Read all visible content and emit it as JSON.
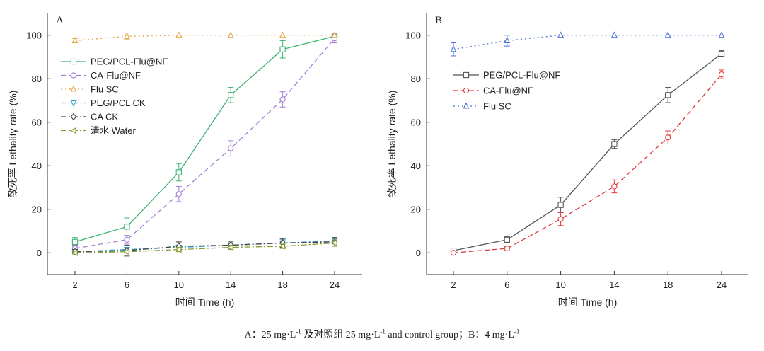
{
  "caption": {
    "part1": "A：25 mg·L",
    "sup1": "-1",
    "part2": " 及对照组 25 mg·L",
    "sup2": "-1",
    "part3": " and control group；B：4 mg·L",
    "sup3": "-1"
  },
  "chart_data": [
    {
      "type": "line",
      "panel_label": "A",
      "xlabel": "时间 Time (h)",
      "ylabel": "致死率 Lethality rate (%)",
      "categories": [
        "2",
        "6",
        "10",
        "14",
        "18",
        "24"
      ],
      "ylim": [
        -10,
        110
      ],
      "yticks": [
        0,
        20,
        40,
        60,
        80,
        100
      ],
      "legend_position": "upper-left",
      "series": [
        {
          "name": "PEG/PCL-Flu@NF",
          "color": "#3cb371",
          "dash": "solid",
          "marker": "square",
          "values": [
            5,
            12,
            37,
            72.5,
            93.5,
            99.5
          ],
          "errors": [
            2,
            4,
            4,
            3.5,
            4,
            1
          ]
        },
        {
          "name": "CA-Flu@NF",
          "color": "#a27fd8",
          "dash": "dashed",
          "marker": "circle",
          "values": [
            2,
            6,
            27,
            48,
            70.5,
            98.5
          ],
          "errors": [
            1.5,
            2,
            3.5,
            3.5,
            3.5,
            2
          ]
        },
        {
          "name": "Flu SC",
          "color": "#e8a040",
          "dash": "dotted",
          "marker": "triangle-up",
          "values": [
            97.5,
            99.5,
            100,
            100,
            100,
            100
          ],
          "errors": [
            1,
            1.5,
            0,
            0,
            0,
            0
          ]
        },
        {
          "name": "PEG/PCL CK",
          "color": "#2aa0c8",
          "dash": "dashdot",
          "marker": "triangle-down",
          "values": [
            0.5,
            1.5,
            2.5,
            3.5,
            4.5,
            5.5
          ],
          "errors": [
            1,
            1,
            1,
            1,
            1.5,
            1.5
          ]
        },
        {
          "name": "CA CK",
          "color": "#444444",
          "dash": "dashdot",
          "marker": "diamond",
          "values": [
            0.5,
            1,
            3,
            3.5,
            4.5,
            5
          ],
          "errors": [
            1,
            2.5,
            2,
            1.5,
            2,
            2
          ]
        },
        {
          "name": "清水 Water",
          "color": "#8a9a30",
          "dash": "dashdot",
          "marker": "triangle-left",
          "values": [
            0,
            0.5,
            1.5,
            2.5,
            3,
            4.5
          ],
          "errors": [
            0.5,
            0.5,
            1,
            1,
            1,
            1.5
          ]
        }
      ]
    },
    {
      "type": "line",
      "panel_label": "B",
      "xlabel": "时间 Time (h)",
      "ylabel": "致死率 Lethality rate (%)",
      "categories": [
        "2",
        "6",
        "10",
        "14",
        "18",
        "24"
      ],
      "ylim": [
        -10,
        110
      ],
      "yticks": [
        0,
        20,
        40,
        60,
        80,
        100
      ],
      "legend_position": "upper-left",
      "series": [
        {
          "name": "PEG/PCL-Flu@NF",
          "color": "#555555",
          "dash": "solid",
          "marker": "square",
          "values": [
            1,
            6,
            22,
            50,
            72.5,
            91.5
          ],
          "errors": [
            0.5,
            1.5,
            3.5,
            2,
            3.5,
            1.5
          ]
        },
        {
          "name": "CA-Flu@NF",
          "color": "#e03a3a",
          "dash": "dashed",
          "marker": "circle",
          "values": [
            0,
            2,
            15.5,
            30.5,
            53,
            82
          ],
          "errors": [
            0.5,
            1,
            3,
            3,
            3,
            2
          ]
        },
        {
          "name": "Flu SC",
          "color": "#4a6fd8",
          "dash": "dotted",
          "marker": "triangle-up",
          "values": [
            93.5,
            97.5,
            100,
            100,
            100,
            100
          ],
          "errors": [
            3,
            2.5,
            0,
            0,
            0,
            0
          ]
        }
      ]
    }
  ]
}
